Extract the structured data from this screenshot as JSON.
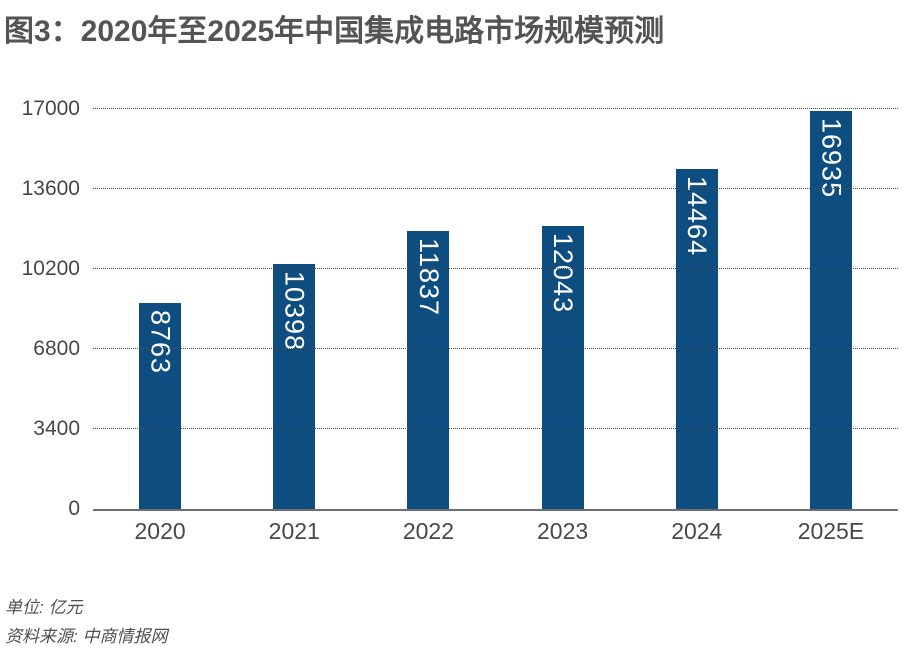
{
  "title": "图3：2020年至2025年中国集成电路市场规模预测",
  "chart_data": {
    "type": "bar",
    "title": "图3：2020年至2025年中国集成电路市场规模预测",
    "categories": [
      "2020",
      "2021",
      "2022",
      "2023",
      "2024",
      "2025E"
    ],
    "values": [
      8763,
      10398,
      11837,
      12043,
      14464,
      16935
    ],
    "xlabel": "",
    "ylabel": "",
    "ylim": [
      0,
      17000
    ],
    "yticks": [
      0,
      3400,
      6800,
      10200,
      13600,
      17000
    ],
    "grid": "horizontal dotted lines at each y tick",
    "legend": "none",
    "value_labels": "white, rotated 90deg clockwise, inside top of each bar",
    "bar_color": "#0d4d80",
    "value_label_color": "#ffffff"
  },
  "footer": {
    "unit_label": "单位: 亿元",
    "source_label": "资料来源: 中商情报网"
  },
  "colors": {
    "background": "#ffffff",
    "bar": "#0d4d80",
    "title_text": "#545457",
    "axis_text": "#48484a",
    "gridline": "#4d4d4d",
    "axis_line": "#6f6f71",
    "footer_text": "#515154"
  }
}
